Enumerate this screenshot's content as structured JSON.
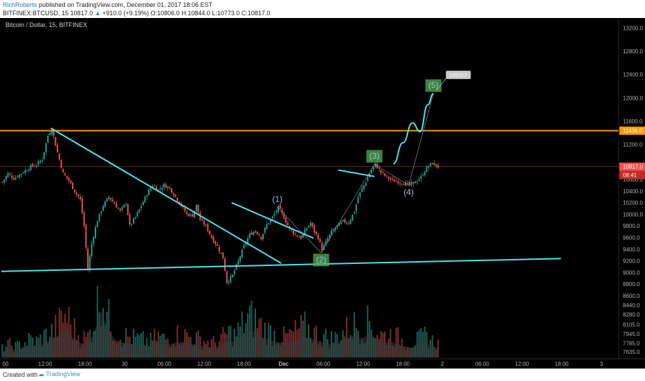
{
  "header": {
    "author": "RichRoberts",
    "published": "published on TradingView.com, December 01, 2017 18:06 EST",
    "symbol": "BITFINEX:BTCUSD, 15",
    "last": "10817.0",
    "change": "+910.0 (+9.19%)",
    "open": "O:10806.0",
    "high": "H:10844.0",
    "low": "L:10773.0",
    "close": "C:10817.0"
  },
  "footer": {
    "created_with": "Created with",
    "logo_text": "TradingView"
  },
  "colors": {
    "background": "#000000",
    "up_candle": "#26a69a",
    "down_candle": "#ef5350",
    "trendline": "#4fe3f0",
    "resistance": "#ff9800",
    "price_line": "#ef5350",
    "label_box": "#4caf50",
    "wave_label": "#aabfdf"
  },
  "chart_data": {
    "type": "candlestick",
    "title": "Bitcoin / Dollar, 15, BITFINEX",
    "ylim": [
      7530,
      13300
    ],
    "y_ticks": [
      "13200.0",
      "12800.0",
      "12400.0",
      "12000.0",
      "11600.0",
      "11200.0",
      "10800.0",
      "10600.0",
      "10400.0",
      "10200.0",
      "10000.0",
      "9800.0",
      "9600.0",
      "9400.0",
      "9200.0",
      "9000.0",
      "8800.0",
      "8600.0",
      "8440.0",
      "8280.0",
      "8105.0",
      "7945.0",
      "7785.0",
      "7635.0"
    ],
    "x_ticks": [
      "00",
      "12:00",
      "18:00",
      "30",
      "06:00",
      "12:00",
      "18:00",
      "Dec",
      "06:00",
      "12:00",
      "18:00",
      "2",
      "06:00",
      "12:00",
      "18:00",
      "3"
    ],
    "price_labels": {
      "resistance": "11436.0",
      "last": "10817.0",
      "countdown": "08:41",
      "target": "12073.7"
    },
    "levels": {
      "resistance": 11436,
      "last": 10817
    },
    "waves": [
      {
        "label": "(1)",
        "price": 10120
      },
      {
        "label": "(2)",
        "price": 9340
      },
      {
        "label": "(3)",
        "price": 10860
      },
      {
        "label": "(4)",
        "price": 10500
      },
      {
        "label": "(5)",
        "price": 12073.7
      }
    ],
    "price_path": [
      [
        0,
        10550
      ],
      [
        3,
        10700
      ],
      [
        6,
        10620
      ],
      [
        9,
        10680
      ],
      [
        12,
        10750
      ],
      [
        15,
        10820
      ],
      [
        18,
        10850
      ],
      [
        21,
        10950
      ],
      [
        24,
        11350
      ],
      [
        26,
        11470
      ],
      [
        29,
        11060
      ],
      [
        32,
        10700
      ],
      [
        35,
        10580
      ],
      [
        38,
        10400
      ],
      [
        41,
        10250
      ],
      [
        43,
        9800
      ],
      [
        45,
        9050
      ],
      [
        47,
        9500
      ],
      [
        50,
        9900
      ],
      [
        53,
        10150
      ],
      [
        56,
        10300
      ],
      [
        59,
        10180
      ],
      [
        62,
        10050
      ],
      [
        65,
        10200
      ],
      [
        67,
        9800
      ],
      [
        70,
        9950
      ],
      [
        73,
        10150
      ],
      [
        76,
        10350
      ],
      [
        79,
        10500
      ],
      [
        82,
        10420
      ],
      [
        85,
        10500
      ],
      [
        88,
        10450
      ],
      [
        91,
        10300
      ],
      [
        94,
        10150
      ],
      [
        97,
        10000
      ],
      [
        100,
        9980
      ],
      [
        102,
        10150
      ],
      [
        104,
        9900
      ],
      [
        107,
        9800
      ],
      [
        110,
        9600
      ],
      [
        113,
        9450
      ],
      [
        116,
        9250
      ],
      [
        118,
        8840
      ],
      [
        121,
        8950
      ],
      [
        124,
        9200
      ],
      [
        127,
        9450
      ],
      [
        130,
        9650
      ],
      [
        133,
        9720
      ],
      [
        136,
        9600
      ],
      [
        139,
        9820
      ],
      [
        142,
        9950
      ],
      [
        145,
        10120
      ],
      [
        148,
        9950
      ],
      [
        151,
        9750
      ],
      [
        154,
        9650
      ],
      [
        157,
        9600
      ],
      [
        159,
        9720
      ],
      [
        162,
        9850
      ],
      [
        164,
        9700
      ],
      [
        166,
        9600
      ],
      [
        168,
        9400
      ],
      [
        170,
        9520
      ],
      [
        173,
        9700
      ],
      [
        176,
        9800
      ],
      [
        179,
        9880
      ],
      [
        182,
        9860
      ],
      [
        185,
        10050
      ],
      [
        187,
        10300
      ],
      [
        190,
        10500
      ],
      [
        193,
        10700
      ],
      [
        196,
        10860
      ],
      [
        199,
        10720
      ],
      [
        202,
        10640
      ],
      [
        205,
        10580
      ],
      [
        208,
        10560
      ],
      [
        211,
        10540
      ],
      [
        214,
        10500
      ],
      [
        217,
        10550
      ],
      [
        220,
        10640
      ],
      [
        223,
        10800
      ],
      [
        226,
        10880
      ],
      [
        229,
        10817
      ]
    ],
    "volume_range": [
      0,
      1
    ],
    "volume_profile": [
      0.12,
      0.18,
      0.15,
      0.2,
      0.25,
      0.22,
      0.3,
      0.35,
      0.45,
      0.6,
      0.4,
      0.3,
      0.25,
      0.5,
      0.95,
      0.55,
      0.35,
      0.3,
      0.28,
      0.26,
      0.24,
      0.22,
      0.3,
      0.25,
      0.28,
      0.32,
      0.3,
      0.27,
      0.25,
      0.22,
      0.2,
      0.25,
      0.35,
      0.3,
      0.45,
      0.55,
      0.5,
      0.4,
      0.35,
      0.3,
      0.28,
      0.32,
      0.38,
      0.42,
      0.35,
      0.3,
      0.28,
      0.26,
      0.33,
      0.4,
      0.45,
      0.38,
      0.5,
      0.35,
      0.3,
      0.32,
      0.28,
      0.22,
      0.2,
      0.25,
      0.3,
      0.22,
      0.18
    ],
    "annotations": {
      "upper_trendline": [
        [
          26,
          11480
        ],
        [
          147,
          9160
        ]
      ],
      "wave_channel_line": [
        [
          121,
          10200
        ],
        [
          164,
          9590
        ]
      ],
      "wave4_trendline": [
        [
          177,
          10760
        ],
        [
          196,
          10650
        ]
      ],
      "support_line": [
        [
          0,
          9020
        ],
        [
          294,
          9240
        ]
      ],
      "projection_curve": [
        [
          206,
          10870
        ],
        [
          211,
          11230
        ],
        [
          216,
          11570
        ],
        [
          220,
          11420
        ],
        [
          224,
          11880
        ],
        [
          227,
          12073.7
        ]
      ]
    }
  }
}
